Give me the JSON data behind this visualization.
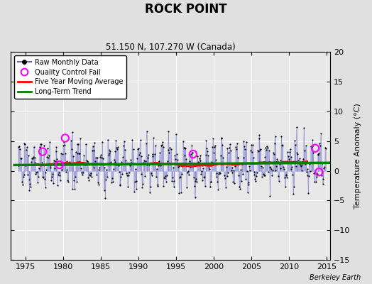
{
  "title": "ROCK POINT",
  "subtitle": "51.150 N, 107.270 W (Canada)",
  "ylabel": "Temperature Anomaly (°C)",
  "credit": "Berkeley Earth",
  "xlim": [
    1973.0,
    2015.5
  ],
  "ylim": [
    -15,
    20
  ],
  "yticks": [
    -15,
    -10,
    -5,
    0,
    5,
    10,
    15,
    20
  ],
  "xticks": [
    1975,
    1980,
    1985,
    1990,
    1995,
    2000,
    2005,
    2010,
    2015
  ],
  "bg_color": "#e0e0e0",
  "plot_bg_color": "#e8e8e8",
  "grid_color": "white",
  "raw_line_color": "#6666cc",
  "raw_dot_color": "black",
  "ma_color": "red",
  "trend_color": "green",
  "qc_color": "magenta",
  "trend_slope": 0.009,
  "trend_intercept": -16.8,
  "seed": 17,
  "qc_x": [
    1977.25,
    1979.5,
    1980.25,
    1997.25,
    2013.5,
    2014.0
  ],
  "qc_y": [
    3.2,
    1.0,
    5.5,
    2.8,
    3.8,
    -0.2
  ]
}
